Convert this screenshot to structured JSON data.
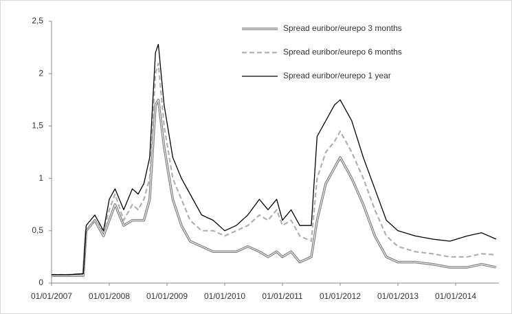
{
  "chart_data": {
    "type": "line",
    "x": [
      2007,
      2007.3,
      2007.55,
      2007.6,
      2007.75,
      2007.9,
      2008.0,
      2008.1,
      2008.25,
      2008.4,
      2008.5,
      2008.6,
      2008.7,
      2008.8,
      2008.85,
      2008.95,
      2009.1,
      2009.25,
      2009.4,
      2009.6,
      2009.8,
      2010.0,
      2010.2,
      2010.4,
      2010.6,
      2010.75,
      2010.9,
      2011.0,
      2011.15,
      2011.3,
      2011.5,
      2011.6,
      2011.75,
      2011.9,
      2012.0,
      2012.2,
      2012.4,
      2012.6,
      2012.8,
      2013.0,
      2013.3,
      2013.6,
      2013.9,
      2014.2,
      2014.45,
      2014.7
    ],
    "series": [
      {
        "name": "Spread euribor/eurepo 3 months",
        "color": "#808080",
        "line_style": "double",
        "values": [
          0.07,
          0.07,
          0.07,
          0.5,
          0.6,
          0.45,
          0.6,
          0.75,
          0.55,
          0.6,
          0.6,
          0.6,
          0.8,
          1.7,
          1.75,
          1.3,
          0.8,
          0.55,
          0.4,
          0.35,
          0.3,
          0.3,
          0.3,
          0.35,
          0.3,
          0.25,
          0.3,
          0.25,
          0.3,
          0.2,
          0.25,
          0.6,
          0.95,
          1.1,
          1.2,
          1.0,
          0.75,
          0.45,
          0.25,
          0.2,
          0.2,
          0.18,
          0.15,
          0.15,
          0.18,
          0.15
        ]
      },
      {
        "name": "Spread euribor/eurepo 6 months",
        "color": "#b0b0b0",
        "line_style": "dashed",
        "values": [
          0.08,
          0.08,
          0.09,
          0.5,
          0.6,
          0.5,
          0.7,
          0.85,
          0.6,
          0.75,
          0.7,
          0.8,
          1.0,
          2.0,
          2.1,
          1.5,
          1.0,
          0.8,
          0.6,
          0.5,
          0.5,
          0.45,
          0.5,
          0.55,
          0.65,
          0.6,
          0.7,
          0.55,
          0.6,
          0.45,
          0.4,
          1.0,
          1.25,
          1.35,
          1.45,
          1.25,
          1.0,
          0.7,
          0.45,
          0.35,
          0.3,
          0.28,
          0.25,
          0.25,
          0.28,
          0.27
        ]
      },
      {
        "name": "Spread euribor/eurepo 1 year",
        "color": "#000000",
        "line_style": "solid",
        "values": [
          0.08,
          0.08,
          0.09,
          0.55,
          0.65,
          0.5,
          0.8,
          0.9,
          0.7,
          0.9,
          0.85,
          0.95,
          1.2,
          2.2,
          2.28,
          1.7,
          1.2,
          1.0,
          0.85,
          0.65,
          0.6,
          0.5,
          0.55,
          0.65,
          0.8,
          0.7,
          0.8,
          0.6,
          0.7,
          0.55,
          0.55,
          1.4,
          1.55,
          1.7,
          1.75,
          1.55,
          1.2,
          0.9,
          0.6,
          0.5,
          0.45,
          0.42,
          0.4,
          0.45,
          0.48,
          0.42
        ]
      }
    ],
    "xlim": [
      2007,
      2014.75
    ],
    "xticks": [
      {
        "value": 2007,
        "label": "01/01/2007"
      },
      {
        "value": 2008,
        "label": "01/01/2008"
      },
      {
        "value": 2009,
        "label": "01/01/2009"
      },
      {
        "value": 2010,
        "label": "01/01/2010"
      },
      {
        "value": 2011,
        "label": "01/01/2011"
      },
      {
        "value": 2012,
        "label": "01/01/2012"
      },
      {
        "value": 2013,
        "label": "01/01/2013"
      },
      {
        "value": 2014,
        "label": "01/01/2014"
      }
    ],
    "ylim": [
      0,
      2.5
    ],
    "yticks": [
      0,
      {
        "value": 0.5,
        "label": "0,5"
      },
      1,
      {
        "value": 1.5,
        "label": "1,5"
      },
      2,
      {
        "value": 2.5,
        "label": "2,5"
      }
    ],
    "grid": false,
    "legend": "top-right"
  }
}
